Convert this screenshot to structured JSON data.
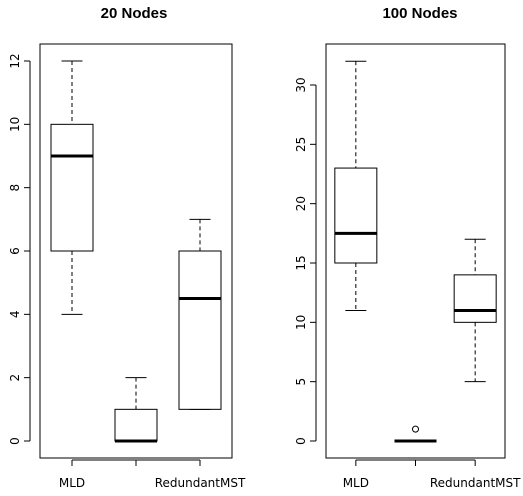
{
  "chart_data": [
    {
      "type": "boxplot",
      "title": "20 Nodes",
      "xlabel": "",
      "ylabel": "",
      "categories": [
        "MLD",
        "",
        "RedundantMST"
      ],
      "yticks": [
        0,
        2,
        4,
        6,
        8,
        10,
        12
      ],
      "ylim": [
        -0.36,
        12.36
      ],
      "grid": false,
      "boxes": [
        {
          "min": 4,
          "q1": 6,
          "median": 9,
          "q3": 10,
          "max": 12,
          "outliers": []
        },
        {
          "min": 0,
          "q1": 0,
          "median": 0,
          "q3": 1,
          "max": 2,
          "outliers": []
        },
        {
          "min": 1,
          "q1": 1,
          "median": 4.5,
          "q3": 6,
          "max": 7,
          "outliers": []
        }
      ]
    },
    {
      "type": "boxplot",
      "title": "100 Nodes",
      "xlabel": "",
      "ylabel": "",
      "categories": [
        "MLD",
        "",
        "RedundantMST"
      ],
      "yticks": [
        0,
        5,
        10,
        15,
        20,
        25,
        30
      ],
      "ylim": [
        -0.96,
        32.96
      ],
      "grid": false,
      "boxes": [
        {
          "min": 11,
          "q1": 15,
          "median": 17.5,
          "q3": 23,
          "max": 32,
          "outliers": []
        },
        {
          "min": 0,
          "q1": 0,
          "median": 0,
          "q3": 0,
          "max": 0,
          "outliers": [
            1
          ]
        },
        {
          "min": 5,
          "q1": 10,
          "median": 11,
          "q3": 14,
          "max": 17,
          "outliers": []
        }
      ]
    }
  ]
}
